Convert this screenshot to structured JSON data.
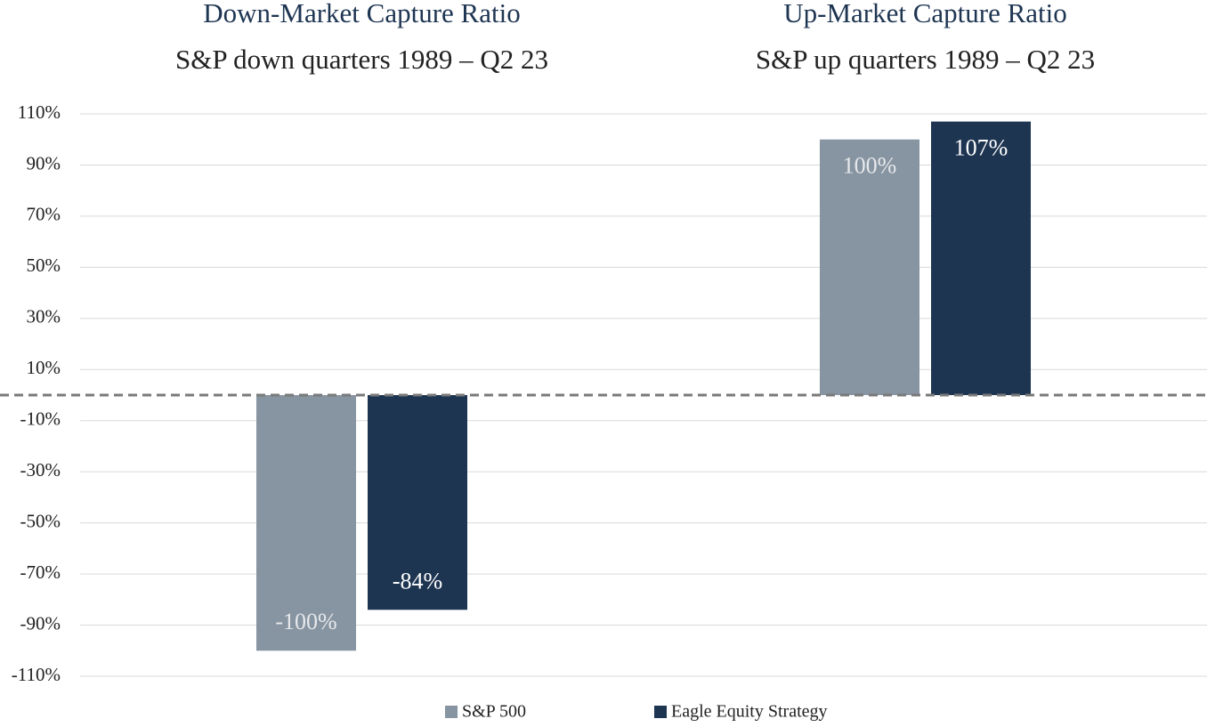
{
  "chart_data": {
    "type": "bar",
    "categories": [
      "Down-Market Capture Ratio",
      "Up-Market Capture Ratio"
    ],
    "category_subtitles": [
      "S&P down quarters 1989 – Q2 23",
      "S&P up quarters 1989 – Q2 23"
    ],
    "series": [
      {
        "name": "S&P 500",
        "color": "#8794a1",
        "values": [
          -100,
          100
        ],
        "value_labels": [
          "-100%",
          "100%"
        ]
      },
      {
        "name": "Eagle Equity Strategy",
        "color": "#1e3552",
        "values": [
          -84,
          107
        ],
        "value_labels": [
          "-84%",
          "107%"
        ]
      }
    ],
    "ylim": [
      -110,
      110
    ],
    "yticks": [
      {
        "value": 110,
        "label": "110%"
      },
      {
        "value": 90,
        "label": "90%"
      },
      {
        "value": 70,
        "label": "70%"
      },
      {
        "value": 50,
        "label": "50%"
      },
      {
        "value": 30,
        "label": "30%"
      },
      {
        "value": 10,
        "label": "10%"
      },
      {
        "value": -10,
        "label": "-10%"
      },
      {
        "value": -30,
        "label": "-30%"
      },
      {
        "value": -50,
        "label": "-50%"
      },
      {
        "value": -70,
        "label": "-70%"
      },
      {
        "value": -90,
        "label": "-90%"
      },
      {
        "value": -110,
        "label": "-110%"
      }
    ],
    "grid": true,
    "legend": "bottom"
  }
}
